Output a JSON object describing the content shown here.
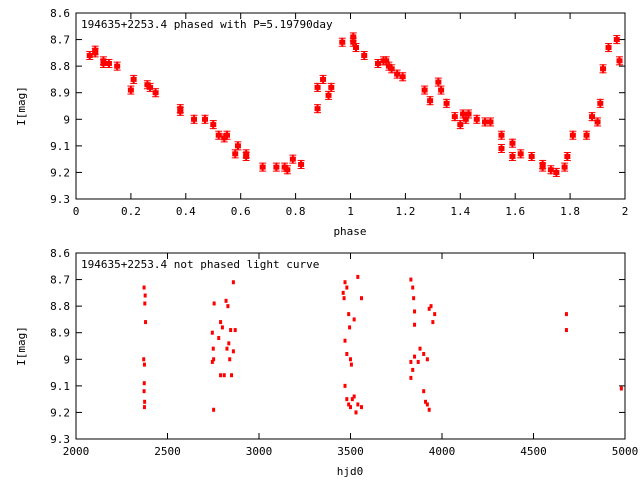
{
  "chart_data": [
    {
      "type": "scatter",
      "title": "194635+2253.4 phased with P=5.19790day",
      "xlabel": "phase",
      "ylabel": "I[mag]",
      "xlim": [
        0,
        2
      ],
      "ylim": [
        8.6,
        9.3
      ],
      "y_inverted": true,
      "grid": false,
      "marker_color": "#ff0000",
      "marker": "errorbar-point",
      "xticks": [
        "0",
        "0.2",
        "0.4",
        "0.6",
        "0.8",
        "1",
        "1.2",
        "1.4",
        "1.6",
        "1.8",
        "2"
      ],
      "yticks": [
        "8.6",
        "8.7",
        "8.8",
        "8.9",
        "9",
        "9.1",
        "9.2",
        "9.3"
      ],
      "points": [
        [
          0.05,
          8.76
        ],
        [
          0.07,
          8.75
        ],
        [
          0.07,
          8.74
        ],
        [
          0.1,
          8.78
        ],
        [
          0.1,
          8.79
        ],
        [
          0.12,
          8.79
        ],
        [
          0.15,
          8.8
        ],
        [
          0.2,
          8.89
        ],
        [
          0.21,
          8.85
        ],
        [
          0.26,
          8.87
        ],
        [
          0.27,
          8.88
        ],
        [
          0.29,
          8.9
        ],
        [
          0.38,
          8.96
        ],
        [
          0.38,
          8.97
        ],
        [
          0.43,
          9.0
        ],
        [
          0.47,
          9.0
        ],
        [
          0.5,
          9.02
        ],
        [
          0.52,
          9.06
        ],
        [
          0.54,
          9.07
        ],
        [
          0.55,
          9.06
        ],
        [
          0.58,
          9.13
        ],
        [
          0.59,
          9.1
        ],
        [
          0.62,
          9.13
        ],
        [
          0.62,
          9.14
        ],
        [
          0.68,
          9.18
        ],
        [
          0.73,
          9.18
        ],
        [
          0.76,
          9.18
        ],
        [
          0.77,
          9.19
        ],
        [
          0.79,
          9.15
        ],
        [
          0.82,
          9.17
        ],
        [
          0.88,
          8.88
        ],
        [
          0.88,
          8.96
        ],
        [
          0.9,
          8.85
        ],
        [
          0.92,
          8.91
        ],
        [
          0.93,
          8.88
        ],
        [
          0.97,
          8.71
        ],
        [
          1.01,
          8.69
        ],
        [
          1.01,
          8.71
        ],
        [
          1.02,
          8.73
        ],
        [
          1.05,
          8.76
        ],
        [
          1.1,
          8.79
        ],
        [
          1.12,
          8.78
        ],
        [
          1.13,
          8.78
        ],
        [
          1.14,
          8.8
        ],
        [
          1.15,
          8.81
        ],
        [
          1.17,
          8.83
        ],
        [
          1.19,
          8.84
        ],
        [
          1.27,
          8.89
        ],
        [
          1.29,
          8.93
        ],
        [
          1.32,
          8.86
        ],
        [
          1.33,
          8.89
        ],
        [
          1.35,
          8.94
        ],
        [
          1.38,
          8.99
        ],
        [
          1.4,
          9.02
        ],
        [
          1.41,
          8.98
        ],
        [
          1.42,
          9.0
        ],
        [
          1.43,
          8.98
        ],
        [
          1.46,
          9.0
        ],
        [
          1.49,
          9.01
        ],
        [
          1.51,
          9.01
        ],
        [
          1.55,
          9.06
        ],
        [
          1.55,
          9.11
        ],
        [
          1.59,
          9.09
        ],
        [
          1.59,
          9.14
        ],
        [
          1.62,
          9.13
        ],
        [
          1.66,
          9.14
        ],
        [
          1.7,
          9.17
        ],
        [
          1.7,
          9.18
        ],
        [
          1.73,
          9.19
        ],
        [
          1.75,
          9.2
        ],
        [
          1.78,
          9.18
        ],
        [
          1.79,
          9.14
        ],
        [
          1.81,
          9.06
        ],
        [
          1.86,
          9.06
        ],
        [
          1.88,
          8.99
        ],
        [
          1.9,
          9.01
        ],
        [
          1.91,
          8.94
        ],
        [
          1.92,
          8.81
        ],
        [
          1.94,
          8.73
        ],
        [
          1.97,
          8.7
        ],
        [
          1.98,
          8.78
        ]
      ]
    },
    {
      "type": "scatter",
      "title": "194635+2253.4 not phased light curve",
      "xlabel": "hjd0",
      "ylabel": "I[mag]",
      "xlim": [
        2000,
        5000
      ],
      "ylim": [
        8.6,
        9.3
      ],
      "y_inverted": true,
      "grid": false,
      "marker_color": "#ff0000",
      "marker": "dot",
      "xticks": [
        "2000",
        "2500",
        "3000",
        "3500",
        "4000",
        "4500",
        "5000"
      ],
      "yticks": [
        "8.6",
        "8.7",
        "8.8",
        "8.9",
        "9",
        "9.1",
        "9.2",
        "9.3"
      ],
      "points": [
        [
          2372,
          8.73
        ],
        [
          2378,
          8.76
        ],
        [
          2376,
          8.79
        ],
        [
          2380,
          8.86
        ],
        [
          2370,
          9.0
        ],
        [
          2374,
          9.02
        ],
        [
          2373,
          9.09
        ],
        [
          2372,
          9.12
        ],
        [
          2375,
          9.16
        ],
        [
          2374,
          9.18
        ],
        [
          2745,
          8.9
        ],
        [
          2750,
          8.96
        ],
        [
          2752,
          9.0
        ],
        [
          2755,
          8.79
        ],
        [
          2745,
          9.01
        ],
        [
          2752,
          9.19
        ],
        [
          2780,
          8.92
        ],
        [
          2790,
          8.86
        ],
        [
          2800,
          8.88
        ],
        [
          2790,
          9.06
        ],
        [
          2810,
          9.06
        ],
        [
          2820,
          8.78
        ],
        [
          2825,
          8.96
        ],
        [
          2830,
          8.8
        ],
        [
          2835,
          8.94
        ],
        [
          2840,
          9.0
        ],
        [
          2845,
          8.89
        ],
        [
          2850,
          9.06
        ],
        [
          2860,
          8.71
        ],
        [
          2860,
          8.97
        ],
        [
          2870,
          8.89
        ],
        [
          3460,
          8.75
        ],
        [
          3470,
          8.71
        ],
        [
          3465,
          8.77
        ],
        [
          3480,
          8.73
        ],
        [
          3490,
          8.83
        ],
        [
          3495,
          8.88
        ],
        [
          3470,
          8.93
        ],
        [
          3480,
          8.98
        ],
        [
          3500,
          9.0
        ],
        [
          3505,
          9.02
        ],
        [
          3470,
          9.1
        ],
        [
          3480,
          9.15
        ],
        [
          3490,
          9.17
        ],
        [
          3500,
          9.18
        ],
        [
          3510,
          9.15
        ],
        [
          3520,
          9.14
        ],
        [
          3520,
          8.85
        ],
        [
          3530,
          9.2
        ],
        [
          3540,
          8.69
        ],
        [
          3540,
          9.17
        ],
        [
          3560,
          8.77
        ],
        [
          3560,
          9.18
        ],
        [
          3830,
          8.7
        ],
        [
          3840,
          8.73
        ],
        [
          3845,
          8.77
        ],
        [
          3850,
          8.82
        ],
        [
          3850,
          8.87
        ],
        [
          3830,
          9.01
        ],
        [
          3840,
          9.04
        ],
        [
          3830,
          9.07
        ],
        [
          3850,
          8.99
        ],
        [
          3870,
          9.01
        ],
        [
          3880,
          8.96
        ],
        [
          3900,
          9.12
        ],
        [
          3910,
          9.16
        ],
        [
          3920,
          9.17
        ],
        [
          3930,
          9.19
        ],
        [
          3930,
          8.81
        ],
        [
          3940,
          8.8
        ],
        [
          3950,
          8.86
        ],
        [
          3960,
          8.83
        ],
        [
          3900,
          8.98
        ],
        [
          3920,
          9.0
        ],
        [
          4680,
          8.83
        ],
        [
          4680,
          8.89
        ],
        [
          4980,
          9.11
        ]
      ]
    }
  ]
}
